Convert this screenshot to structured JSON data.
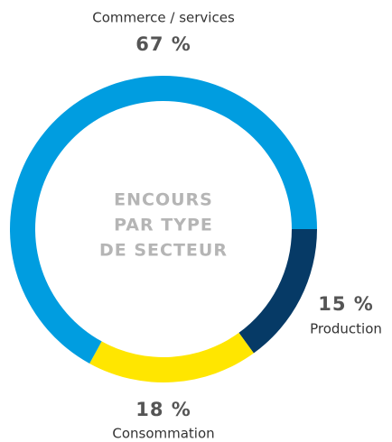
{
  "chart_data": {
    "type": "donut",
    "center_label": [
      "ENCOURS",
      "PAR TYPE",
      "DE SECTEUR"
    ],
    "categories": [
      "Production",
      "Consommation",
      "Commerce / services"
    ],
    "values": [
      15,
      18,
      67
    ],
    "value_labels": [
      "15 %",
      "18 %",
      "67 %"
    ],
    "colors": [
      "#063a66",
      "#ffe600",
      "#009de0"
    ]
  }
}
